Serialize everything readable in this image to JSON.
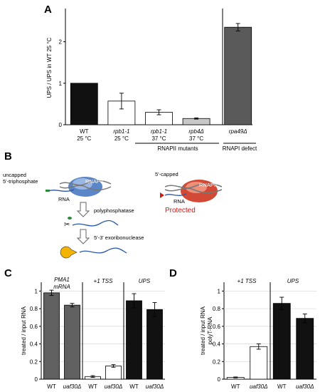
{
  "panel_labels": {
    "a": "A",
    "b": "B",
    "c": "C",
    "d": "D"
  },
  "panel_b": {
    "uncapped_line1": "uncapped",
    "uncapped_line2": "5'-triphosphate",
    "rnapii_left": "RNAPII",
    "rna_left": "RNA",
    "step1": "polyphosphatase",
    "step2": "5'-3' exoribonuclease",
    "capped": "5'-capped",
    "rnapii_right": "RNAPII",
    "rna_right": "RNA",
    "protected": "Protected"
  },
  "chart_data": [
    {
      "panel": "A",
      "type": "bar",
      "ylabel": "UPS / UPS in WT 25 °C",
      "ylim": [
        0,
        2.8
      ],
      "yticks": [
        0,
        1,
        2
      ],
      "categories": [
        {
          "l1": "WT",
          "l2": "25 °C"
        },
        {
          "l1": "rpb1-1",
          "l2": "25 °C"
        },
        {
          "l1": "rpb1-1",
          "l2": "37 °C"
        },
        {
          "l1": "rpb4Δ",
          "l2": "37 °C"
        },
        {
          "l1": "rpa49Δ",
          "l2": ""
        }
      ],
      "values": [
        1.0,
        0.57,
        0.3,
        0.15,
        2.35
      ],
      "errors": [
        0,
        0.19,
        0.06,
        0.015,
        0.09
      ],
      "colors": [
        "#111111",
        "#ffffff",
        "#ffffff",
        "#c8c8c8",
        "#5a5a5a"
      ],
      "groups": [
        {
          "label": "RNAPII  mutants"
        },
        {
          "label": "RNAPI defect"
        }
      ]
    },
    {
      "panel": "C",
      "type": "bar",
      "ylabel": "treated / input RNA",
      "ylim": [
        0,
        1.1
      ],
      "yticks": [
        0,
        0.2,
        0.4,
        0.6,
        0.8,
        1
      ],
      "yticklabels": [
        "0",
        "0.2",
        "0.4",
        "0.6",
        "0.8",
        "1"
      ],
      "section_labels": [
        "PMA1",
        "mRNA",
        "+1 TSS",
        "UPS"
      ],
      "categories": [
        "WT",
        "uaf30Δ",
        "WT",
        "uaf30Δ",
        "WT",
        "uaf30Δ"
      ],
      "values": [
        0.98,
        0.84,
        0.03,
        0.15,
        0.89,
        0.79
      ],
      "errors": [
        0.03,
        0.02,
        0.01,
        0.015,
        0.08,
        0.08
      ],
      "colors": [
        "#606060",
        "#606060",
        "#ffffff",
        "#ffffff",
        "#111111",
        "#111111"
      ]
    },
    {
      "panel": "D",
      "type": "bar",
      "ylabel": "treated / input RNA",
      "ylabel2": "polyT-RNA",
      "ylim": [
        0,
        1.1
      ],
      "yticks": [
        0,
        0.2,
        0.4,
        0.6,
        0.8,
        1
      ],
      "yticklabels": [
        "0",
        "0.2",
        "0.4",
        "0.6",
        "0.8",
        "1"
      ],
      "section_labels": [
        "+1 TSS",
        "UPS"
      ],
      "categories": [
        "WT",
        "uaf30Δ",
        "WT",
        "uaf30Δ"
      ],
      "values": [
        0.02,
        0.37,
        0.86,
        0.69
      ],
      "errors": [
        0.005,
        0.03,
        0.07,
        0.05
      ],
      "colors": [
        "#ffffff",
        "#ffffff",
        "#111111",
        "#111111"
      ]
    }
  ]
}
